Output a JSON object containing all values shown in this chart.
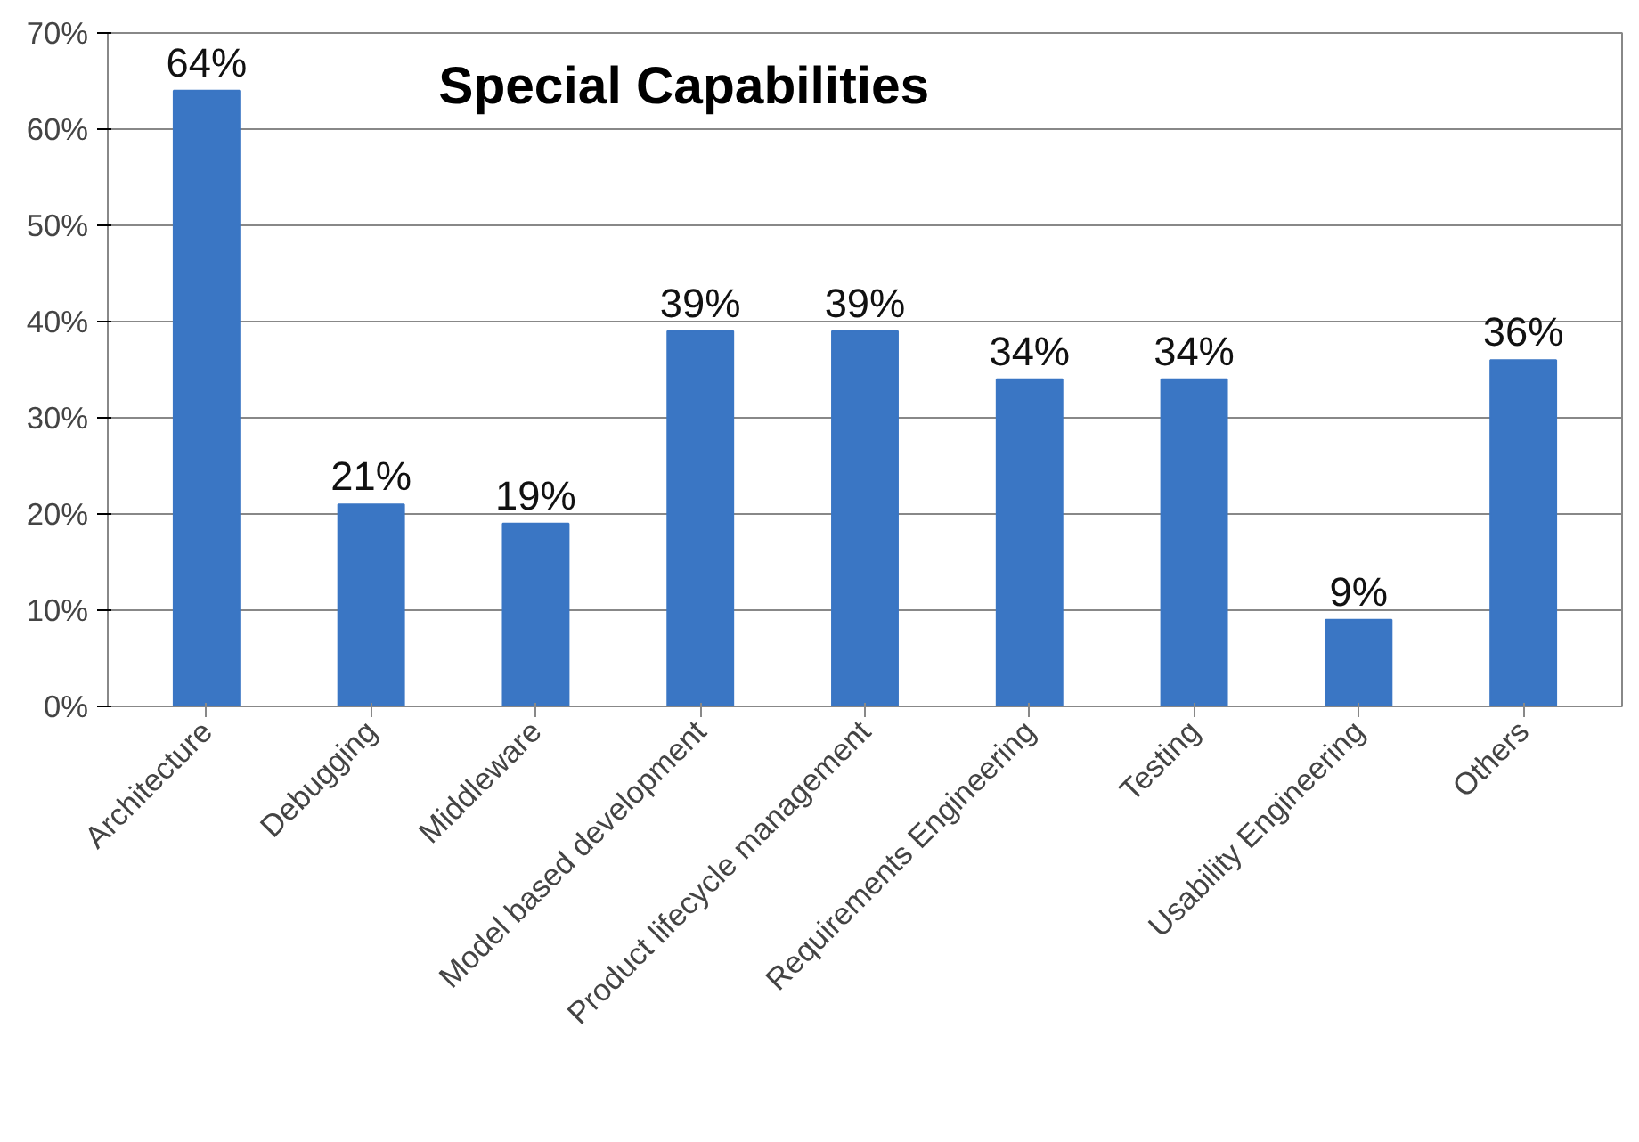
{
  "chart_data": {
    "type": "bar",
    "title": "Special Capabilities",
    "categories": [
      "Architecture",
      "Debugging",
      "Middleware",
      "Model based development",
      "Product lifecycle management",
      "Requirements Engineering",
      "Testing",
      "Usability Engineering",
      "Others"
    ],
    "values": [
      64,
      21,
      19,
      39,
      39,
      34,
      34,
      9,
      36
    ],
    "value_labels": [
      "64%",
      "21%",
      "19%",
      "39%",
      "39%",
      "34%",
      "34%",
      "9%",
      "36%"
    ],
    "color": "#3a76c4",
    "ylim": [
      0,
      70
    ],
    "yticks": [
      {
        "value": 0,
        "label": "0%"
      },
      {
        "value": 10,
        "label": "10%"
      },
      {
        "value": 20,
        "label": "20%"
      },
      {
        "value": 30,
        "label": "30%"
      },
      {
        "value": 40,
        "label": "40%"
      },
      {
        "value": 50,
        "label": "50%"
      },
      {
        "value": 60,
        "label": "60%"
      },
      {
        "value": 70,
        "label": "70%"
      }
    ],
    "grid": "y"
  }
}
